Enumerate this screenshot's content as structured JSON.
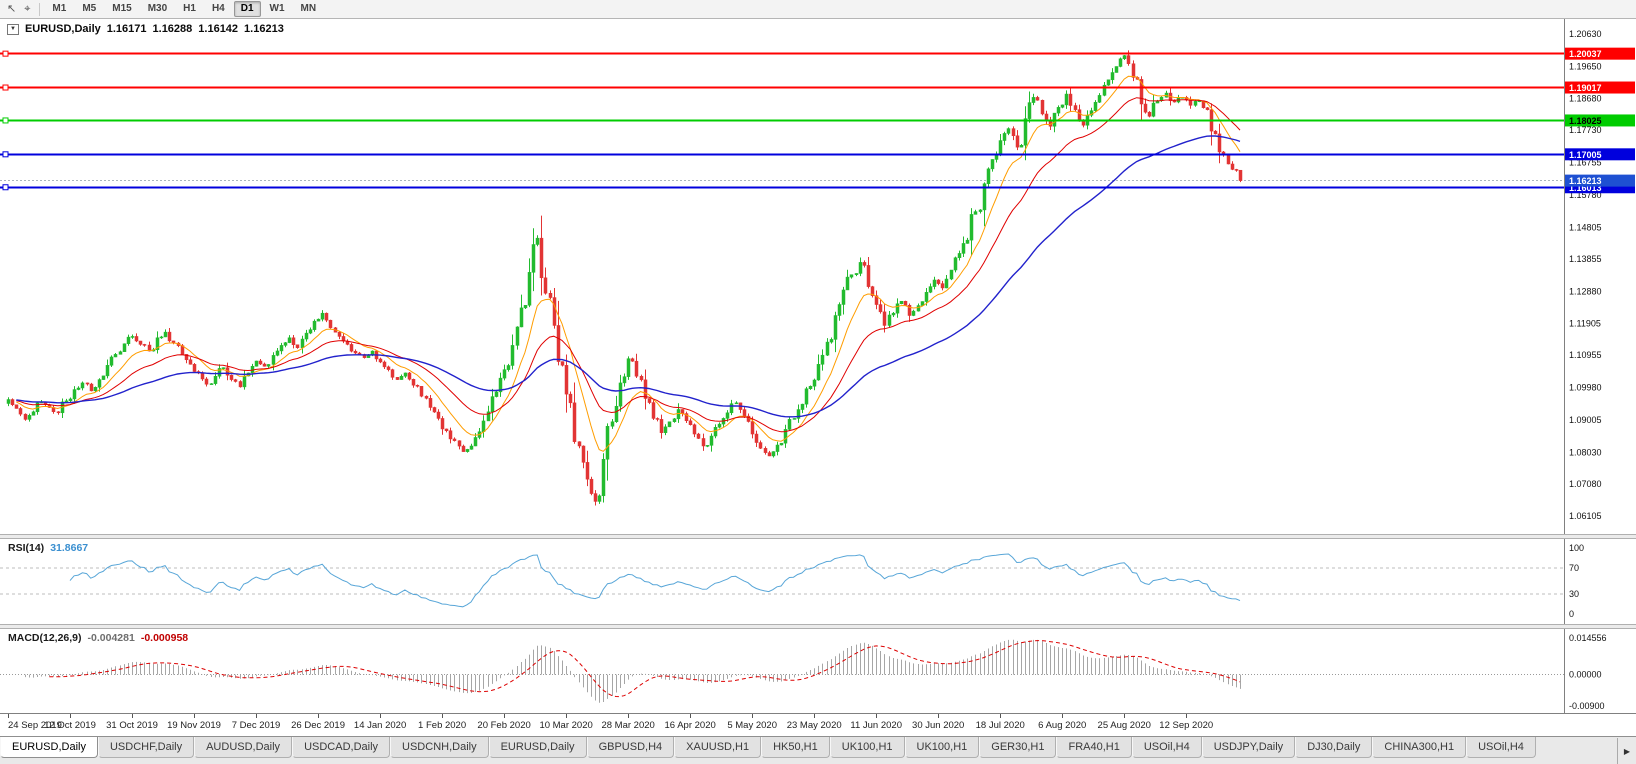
{
  "toolbar": {
    "timeframes": [
      "M1",
      "M5",
      "M15",
      "M30",
      "H1",
      "H4",
      "D1",
      "W1",
      "MN"
    ],
    "active_timeframe": "D1"
  },
  "icons": {
    "cursor": "↖",
    "crosshair": "⌖",
    "dropdown": "▼",
    "tab_scroll_right": "▶"
  },
  "chart": {
    "title": "EURUSD,Daily",
    "ohlc": {
      "open": "1.16171",
      "high": "1.16288",
      "low": "1.16142",
      "close": "1.16213"
    }
  },
  "chart_data": {
    "type": "candlestick",
    "symbol": "EURUSD",
    "timeframe": "Daily",
    "x_labels": [
      "24 Sep 2019",
      "12 Oct 2019",
      "31 Oct 2019",
      "19 Nov 2019",
      "7 Dec 2019",
      "26 Dec 2019",
      "14 Jan 2020",
      "1 Feb 2020",
      "20 Feb 2020",
      "10 Mar 2020",
      "28 Mar 2020",
      "16 Apr 2020",
      "5 May 2020",
      "23 May 2020",
      "11 Jun 2020",
      "30 Jun 2020",
      "18 Jul 2020",
      "6 Aug 2020",
      "25 Aug 2020",
      "12 Sep 2020"
    ],
    "y_ticks": [
      "1.20630",
      "1.19650",
      "1.18680",
      "1.17730",
      "1.16755",
      "1.15780",
      "1.14805",
      "1.13855",
      "1.12880",
      "1.11905",
      "1.10955",
      "1.09980",
      "1.09005",
      "1.08030",
      "1.07080",
      "1.06105"
    ],
    "y_range": [
      1.0575,
      1.209
    ],
    "close_path": [
      1.0962,
      1.0935,
      1.0902,
      1.0925,
      1.0955,
      1.0938,
      1.0922,
      1.0958,
      1.0992,
      1.1012,
      1.0988,
      1.1022,
      1.1065,
      1.1098,
      1.113,
      1.1152,
      1.1128,
      1.1108,
      1.1148,
      1.1165,
      1.1132,
      1.1098,
      1.1068,
      1.1042,
      1.1008,
      1.1032,
      1.1058,
      1.1022,
      1.1,
      1.1042,
      1.1078,
      1.1062,
      1.1095,
      1.1125,
      1.1148,
      1.1118,
      1.1162,
      1.1198,
      1.1222,
      1.1178,
      1.1152,
      1.1128,
      1.1102,
      1.1088,
      1.1108,
      1.1075,
      1.1052,
      1.1022,
      1.1042,
      1.1005,
      1.0972,
      1.0938,
      1.0905,
      1.0868,
      1.0838,
      1.0805,
      1.0822,
      1.0865,
      1.0925,
      1.0985,
      1.1052,
      1.1125,
      1.1238,
      1.1345,
      1.1448,
      1.1282,
      1.1185,
      1.1065,
      1.0952,
      1.0822,
      1.0722,
      1.0655,
      1.0782,
      1.0895,
      1.1012,
      1.1085,
      1.1032,
      1.0965,
      1.0905,
      1.0862,
      1.0895,
      1.0932,
      1.0898,
      1.0858,
      1.0822,
      1.0852,
      1.0888,
      1.0922,
      1.0952,
      1.0912,
      1.0858,
      1.0815,
      1.0792,
      1.0825,
      1.0872,
      1.0905,
      1.0948,
      1.1002,
      1.1068,
      1.1135,
      1.1215,
      1.1292,
      1.1338,
      1.1375,
      1.1302,
      1.1248,
      1.1185,
      1.1222,
      1.1258,
      1.1215,
      1.1245,
      1.1285,
      1.1322,
      1.1298,
      1.1352,
      1.1402,
      1.1442,
      1.1528,
      1.1612,
      1.1685,
      1.1742,
      1.1778,
      1.1722,
      1.1808,
      1.1872,
      1.1822,
      1.1785,
      1.1842,
      1.1882,
      1.1835,
      1.1788,
      1.1832,
      1.1878,
      1.1925,
      1.1965,
      1.1998,
      1.1932,
      1.1852,
      1.1815,
      1.1862,
      1.1885,
      1.1858,
      1.1872,
      1.1848,
      1.1862,
      1.1835,
      1.1762,
      1.1698,
      1.1655,
      1.16213
    ],
    "up_color": "#22bb2f",
    "down_color": "#e23434",
    "hlines": [
      {
        "price": 1.20037,
        "label": "1.20037",
        "color": "#ff0000",
        "text_color": "#ffffff",
        "width": 2
      },
      {
        "price": 1.19017,
        "label": "1.19017",
        "color": "#ff0000",
        "text_color": "#ffffff",
        "width": 2
      },
      {
        "price": 1.18025,
        "label": "1.18025",
        "color": "#00cc00",
        "text_color": "#000000",
        "width": 2
      },
      {
        "price": 1.17005,
        "label": "1.17005",
        "color": "#0000dd",
        "text_color": "#ffffff",
        "width": 2
      },
      {
        "price": 1.16013,
        "label": "1.16013",
        "color": "#0000dd",
        "text_color": "#ffffff",
        "width": 2
      }
    ],
    "current_price": {
      "value": 1.16213,
      "label": "1.16213",
      "color": "#1e50d2"
    },
    "moving_averages": [
      {
        "name": "fast",
        "period": 10,
        "color": "#ff9d00"
      },
      {
        "name": "medium",
        "period": 24,
        "color": "#e00000"
      },
      {
        "name": "slow",
        "period": 60,
        "color": "#2222cc"
      }
    ],
    "indicators": {
      "rsi": {
        "label": "RSI(14)",
        "value": "31.8667",
        "levels": [
          100,
          70,
          30,
          0
        ],
        "color": "#58a6d8"
      },
      "macd": {
        "label": "MACD(12,26,9)",
        "main_value": "-0.004281",
        "signal_value": "-0.000958",
        "axis_labels": [
          "0.014556",
          "0.00000",
          "-0.00900"
        ],
        "hist_color": "#a6a6a6",
        "signal_color": "#dd0000"
      }
    }
  },
  "tabs": {
    "active_index": 0,
    "items": [
      "EURUSD,Daily",
      "USDCHF,Daily",
      "AUDUSD,Daily",
      "USDCAD,Daily",
      "USDCNH,Daily",
      "EURUSD,Daily",
      "GBPUSD,H4",
      "XAUUSD,H1",
      "HK50,H1",
      "UK100,H1",
      "UK100,H1",
      "GER30,H1",
      "FRA40,H1",
      "USOil,H4",
      "USDJPY,Daily",
      "DJ30,Daily",
      "CHINA300,H1",
      "USOil,H4"
    ]
  }
}
